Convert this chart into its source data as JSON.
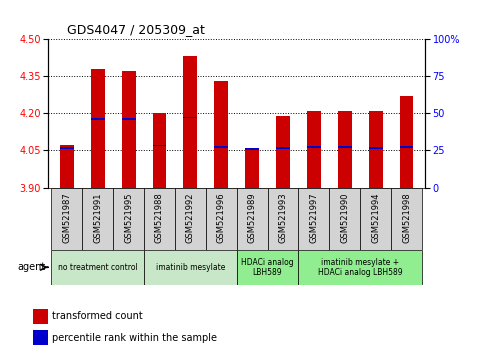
{
  "title": "GDS4047 / 205309_at",
  "samples": [
    "GSM521987",
    "GSM521991",
    "GSM521995",
    "GSM521988",
    "GSM521992",
    "GSM521996",
    "GSM521989",
    "GSM521993",
    "GSM521997",
    "GSM521990",
    "GSM521994",
    "GSM521998"
  ],
  "bar_tops": [
    4.07,
    4.38,
    4.37,
    4.2,
    4.43,
    4.33,
    4.06,
    4.19,
    4.21,
    4.21,
    4.21,
    4.27
  ],
  "bar_bottoms": [
    3.9,
    3.9,
    3.9,
    3.9,
    3.9,
    3.9,
    3.9,
    3.9,
    3.9,
    3.9,
    3.9,
    3.9
  ],
  "percentile_values": [
    4.06,
    4.175,
    4.175,
    4.07,
    4.183,
    4.065,
    4.057,
    4.06,
    4.065,
    4.065,
    4.06,
    4.065
  ],
  "bar_color": "#cc0000",
  "percentile_color": "#0000cc",
  "ylim_left": [
    3.9,
    4.5
  ],
  "ylim_right": [
    0,
    100
  ],
  "yticks_left": [
    3.9,
    4.05,
    4.2,
    4.35,
    4.5
  ],
  "yticks_right": [
    0,
    25,
    50,
    75,
    100
  ],
  "groups": [
    {
      "label": "no treatment control",
      "start": 0,
      "end": 3,
      "color": "#c8e6c8"
    },
    {
      "label": "imatinib mesylate",
      "start": 3,
      "end": 6,
      "color": "#c8e6c8"
    },
    {
      "label": "HDACi analog\nLBH589",
      "start": 6,
      "end": 8,
      "color": "#90ee90"
    },
    {
      "label": "imatinib mesylate +\nHDACi analog LBH589",
      "start": 8,
      "end": 12,
      "color": "#90ee90"
    }
  ],
  "legend_labels": [
    "transformed count",
    "percentile rank within the sample"
  ],
  "agent_label": "agent",
  "bar_width": 0.45
}
